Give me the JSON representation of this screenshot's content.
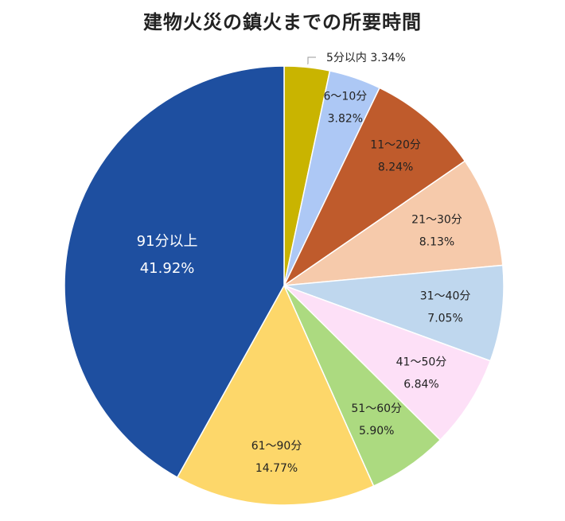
{
  "chart_data": {
    "type": "pie",
    "title": "建物火災の鎮火までの所要時間",
    "slices": [
      {
        "label": "5分以内",
        "value": 3.34,
        "value_text": "3.34%",
        "color": "#C9B400"
      },
      {
        "label": "6～10分",
        "value": 3.82,
        "value_text": "3.82%",
        "color": "#ADC8F5"
      },
      {
        "label": "11～20分",
        "value": 8.24,
        "value_text": "8.24%",
        "color": "#BF5B2C"
      },
      {
        "label": "21～30分",
        "value": 8.13,
        "value_text": "8.13%",
        "color": "#F6CAAB"
      },
      {
        "label": "31～40分",
        "value": 7.05,
        "value_text": "7.05%",
        "color": "#BFD7EE"
      },
      {
        "label": "41～50分",
        "value": 6.84,
        "value_text": "6.84%",
        "color": "#FDE0F7"
      },
      {
        "label": "51～60分",
        "value": 5.9,
        "value_text": "5.90%",
        "color": "#ACDA80"
      },
      {
        "label": "61～90分",
        "value": 14.77,
        "value_text": "14.77%",
        "color": "#FDD76A"
      },
      {
        "label": "91分以上",
        "value": 41.92,
        "value_text": "41.92%",
        "color": "#1E4FA0"
      }
    ],
    "start_angle": "top",
    "direction": "clockwise",
    "legend": "none"
  }
}
